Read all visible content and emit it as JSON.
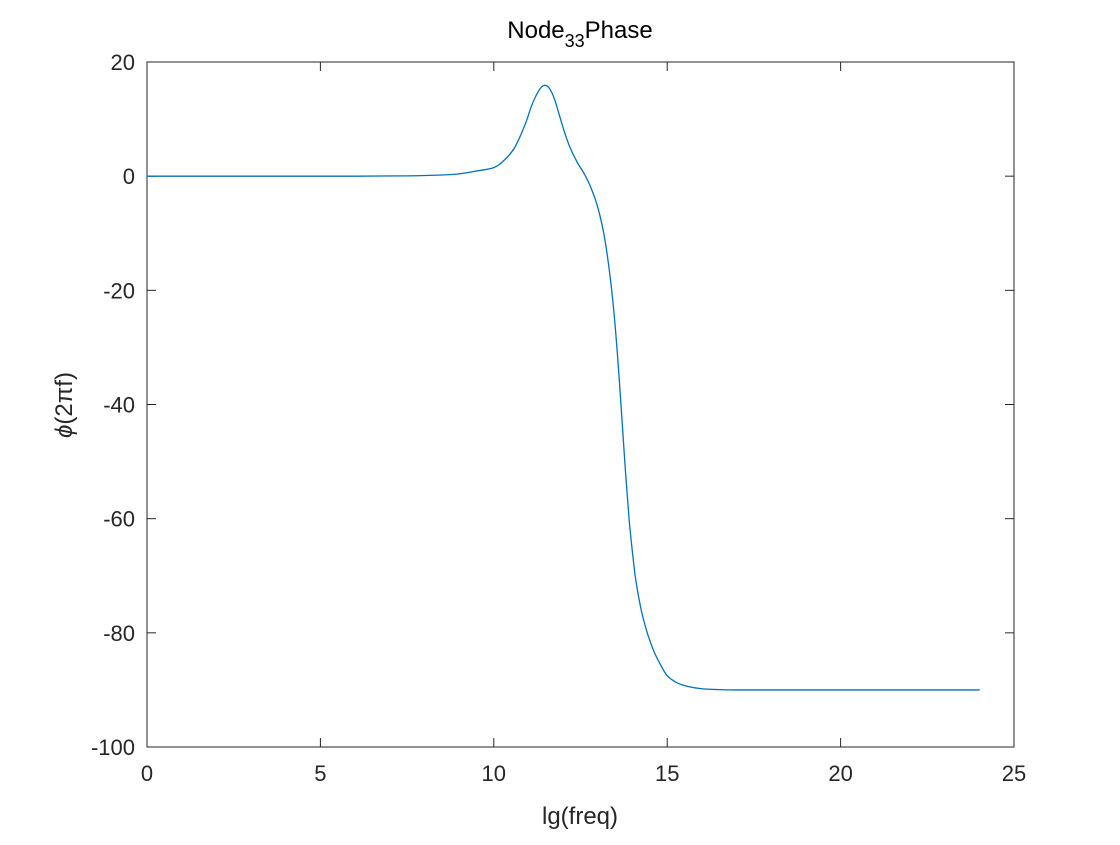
{
  "chart_data": {
    "type": "line",
    "title": {
      "base": "Node",
      "subscript": "33",
      "suffix": "Phase"
    },
    "xlabel": "lg(freq)",
    "ylabel": {
      "symbol": "ϕ",
      "text": "(2πf)"
    },
    "xlim": [
      0,
      25
    ],
    "ylim": [
      -100,
      20
    ],
    "xticks": [
      0,
      5,
      10,
      15,
      20,
      25
    ],
    "yticks": [
      20,
      0,
      -20,
      -40,
      -60,
      -80,
      -100
    ],
    "grid": false,
    "box": true,
    "line_color": "#0072BD",
    "axis_color": "#262626",
    "series": [
      {
        "x": [
          0,
          2,
          4,
          6,
          7.5,
          8.5,
          9.0,
          9.5,
          10.0,
          10.3,
          10.6,
          10.9,
          11.1,
          11.3,
          11.45,
          11.6,
          11.75,
          11.9,
          12.05,
          12.2,
          12.4,
          12.6,
          12.8,
          13.0,
          13.2,
          13.4,
          13.55,
          13.7,
          13.8,
          13.9,
          14.0,
          14.1,
          14.25,
          14.4,
          14.6,
          14.8,
          15.0,
          15.3,
          15.6,
          16.0,
          16.5,
          17.0,
          18.0,
          20.0,
          22.0,
          24.0
        ],
        "y": [
          0,
          0,
          0,
          0,
          0.05,
          0.2,
          0.4,
          0.9,
          1.5,
          2.8,
          5.0,
          9.0,
          12.5,
          15.0,
          15.9,
          15.4,
          13.5,
          10.5,
          7.5,
          5.0,
          2.5,
          0.5,
          -2.0,
          -5.5,
          -11.0,
          -20.0,
          -30.0,
          -43.0,
          -52.0,
          -60.0,
          -66.0,
          -71.0,
          -76.0,
          -79.5,
          -83.0,
          -85.5,
          -87.5,
          -88.8,
          -89.4,
          -89.8,
          -89.95,
          -90.0,
          -90.0,
          -90.0,
          -90.0,
          -90.0
        ]
      }
    ]
  }
}
